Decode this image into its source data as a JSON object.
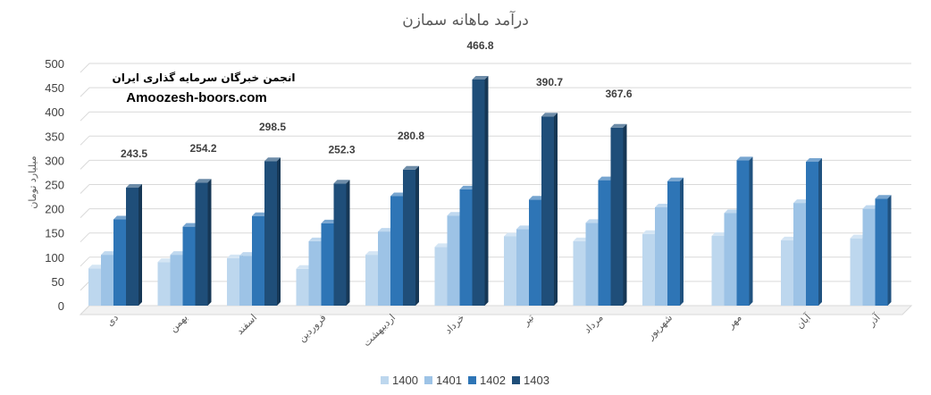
{
  "chart_data": {
    "type": "bar",
    "title": "درآمد ماهانه سمازن",
    "xlabel": "",
    "ylabel": "میلیارد تومان",
    "ylim": [
      0,
      500
    ],
    "yticks": [
      0,
      50,
      100,
      150,
      200,
      250,
      300,
      350,
      400,
      450,
      500
    ],
    "grid": true,
    "legend_position": "bottom",
    "categories": [
      "دی",
      "بهمن",
      "اسفند",
      "فروردین",
      "اردیبهشت",
      "خرداد",
      "تیر",
      "مرداد",
      "شهریور",
      "مهر",
      "آبان",
      "آذر"
    ],
    "series": [
      {
        "name": "1400",
        "color": "#bdd7ee",
        "values": [
          77,
          90,
          98,
          76,
          105,
          121,
          143,
          133,
          148,
          144,
          135,
          139
        ]
      },
      {
        "name": "1401",
        "color": "#9dc3e6",
        "values": [
          105,
          105,
          103,
          133,
          153,
          186,
          158,
          171,
          203,
          191,
          212,
          200
        ]
      },
      {
        "name": "1402",
        "color": "#2e75b6",
        "values": [
          178,
          163,
          185,
          170,
          226,
          240,
          219,
          259,
          257,
          300,
          297,
          221
        ]
      },
      {
        "name": "1403",
        "color": "#1f4e79",
        "values": [
          243.5,
          254.2,
          298.5,
          252.3,
          280.8,
          466.8,
          390.7,
          367.6,
          null,
          null,
          null,
          null
        ]
      }
    ],
    "data_labels": {
      "series": "1403",
      "values": [
        "243.5",
        "254.2",
        "298.5",
        "252.3",
        "280.8",
        "466.8",
        "390.7",
        "367.6"
      ]
    },
    "watermark": {
      "line1": "انجمن خبرگان سرمایه گذاری ایران",
      "line2": "Amoozesh-boors.com"
    }
  }
}
